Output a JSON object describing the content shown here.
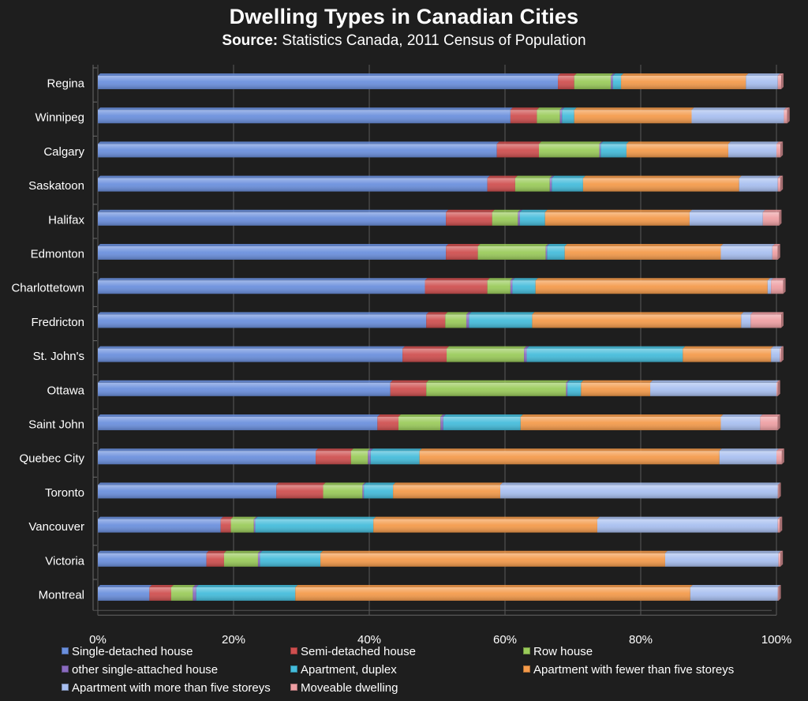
{
  "chart_data": {
    "type": "bar",
    "orientation": "horizontal",
    "stacked": "percent",
    "title": "Dwelling Types in Canadian Cities",
    "subtitle": {
      "label": "Source:",
      "text": "Statistics Canada, 2011 Census of Population"
    },
    "categories": [
      "Regina",
      "Winnipeg",
      "Calgary",
      "Saskatoon",
      "Halifax",
      "Edmonton",
      "Charlottetown",
      "Fredricton",
      "St. John's",
      "Ottawa",
      "Saint John",
      "Quebec City",
      "Toronto",
      "Vancouver",
      "Victoria",
      "Montreal"
    ],
    "x_ticks": [
      "0%",
      "20%",
      "40%",
      "60%",
      "80%",
      "100%"
    ],
    "xlim": [
      0,
      100
    ],
    "grid": true,
    "legend_position": "bottom",
    "series": [
      {
        "name": "Single-detached house",
        "color": "#6a8fdd",
        "values": [
          67.8,
          60.8,
          58.8,
          57.4,
          51.3,
          51.3,
          48.2,
          48.4,
          44.9,
          43.1,
          41.2,
          32.1,
          26.3,
          18.1,
          16.0,
          7.6
        ]
      },
      {
        "name": "Semi-detached house",
        "color": "#cf4f4f",
        "values": [
          2.4,
          3.9,
          6.2,
          4.1,
          6.8,
          4.7,
          9.2,
          2.8,
          6.5,
          5.3,
          3.1,
          5.2,
          6.9,
          1.5,
          2.6,
          3.2
        ]
      },
      {
        "name": "Row house",
        "color": "#9acb5a",
        "values": [
          5.4,
          3.4,
          8.9,
          5.1,
          3.8,
          10.0,
          3.4,
          3.1,
          11.4,
          20.6,
          6.2,
          2.5,
          5.8,
          3.4,
          5.0,
          3.2
        ]
      },
      {
        "name": "other single-attached house",
        "color": "#8a6bbf",
        "values": [
          0.3,
          0.3,
          0.2,
          0.3,
          0.3,
          0.2,
          0.3,
          0.4,
          0.4,
          0.2,
          0.4,
          0.4,
          0.2,
          0.2,
          0.3,
          0.5
        ]
      },
      {
        "name": "Apartment, duplex",
        "color": "#44bcdb",
        "values": [
          1.2,
          1.8,
          3.8,
          4.6,
          3.7,
          2.6,
          3.4,
          9.3,
          23.0,
          2.0,
          11.4,
          7.2,
          4.3,
          17.4,
          8.9,
          14.6
        ]
      },
      {
        "name": "Apartment with fewer than five storeys",
        "color": "#f49a4a",
        "values": [
          18.4,
          17.3,
          15.0,
          23.0,
          21.3,
          23.0,
          34.2,
          30.8,
          13.0,
          10.2,
          29.5,
          44.2,
          15.8,
          33.0,
          50.8,
          58.2
        ]
      },
      {
        "name": "Apartment with more than five storeys",
        "color": "#a8bff0",
        "values": [
          4.7,
          13.6,
          7.1,
          5.7,
          10.8,
          7.6,
          0.5,
          1.4,
          1.3,
          18.6,
          5.8,
          8.4,
          40.9,
          26.6,
          16.7,
          12.9
        ]
      },
      {
        "name": "Moveable dwelling",
        "color": "#ee9fa3",
        "values": [
          0.5,
          0.5,
          0.6,
          0.4,
          2.4,
          0.8,
          1.8,
          4.5,
          0.2,
          0.2,
          2.6,
          0.8,
          0.1,
          0.3,
          0.3,
          0.1
        ]
      }
    ]
  }
}
